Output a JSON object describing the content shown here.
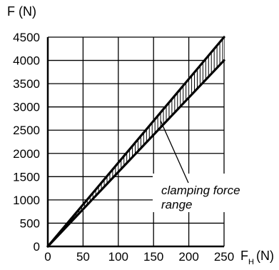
{
  "chart_data": {
    "type": "area",
    "title": "",
    "ylabel": "F (N)",
    "xlabel_main": "F",
    "xlabel_sub": "H",
    "xlabel_unit": "(N)",
    "xlim": [
      0,
      250
    ],
    "ylim": [
      0,
      4500
    ],
    "x_ticks": [
      0,
      50,
      100,
      150,
      200,
      250
    ],
    "y_ticks": [
      0,
      500,
      1000,
      1500,
      2000,
      2500,
      3000,
      3500,
      4000,
      4500
    ],
    "grid": true,
    "series": [
      {
        "x": [
          0,
          250
        ],
        "upper": [
          0,
          4500
        ],
        "lower": [
          0,
          4000
        ]
      }
    ],
    "annotation": {
      "lines": [
        "clamping force",
        "range"
      ],
      "points_to": {
        "x": 160,
        "y": 2700
      }
    }
  }
}
